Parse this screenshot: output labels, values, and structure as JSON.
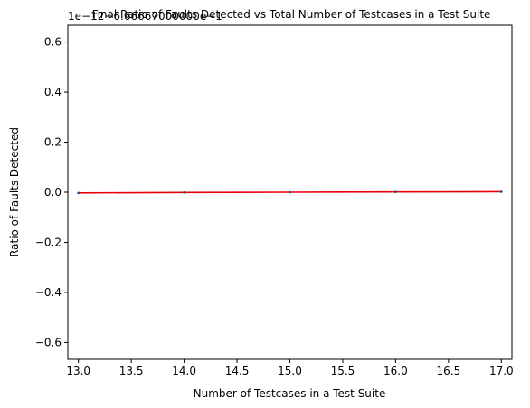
{
  "chart_data": {
    "type": "line",
    "title": "Final Ratio of Faults Detected vs Total Number of Testcases in a Test Suite",
    "xlabel": "Number of Testcases in a Test Suite",
    "ylabel": "Ratio of Faults Detected",
    "offset_label": "1e−12+6.66667000000e−1",
    "xlim": [
      12.9,
      17.1
    ],
    "ylim": [
      -0.667,
      0.667
    ],
    "x_ticks": [
      13.0,
      13.5,
      14.0,
      14.5,
      15.0,
      15.5,
      16.0,
      16.5,
      17.0
    ],
    "x_tick_labels": [
      "13.0",
      "13.5",
      "14.0",
      "14.5",
      "15.0",
      "15.5",
      "16.0",
      "16.5",
      "17.0"
    ],
    "y_ticks": [
      -0.6,
      -0.4,
      -0.2,
      0.0,
      0.2,
      0.4,
      0.6
    ],
    "y_tick_labels": [
      "−0.6",
      "−0.4",
      "−0.2",
      "0.0",
      "0.2",
      "0.4",
      "0.6"
    ],
    "grid": false,
    "series": [
      {
        "color": "#e8000b",
        "marker_color": "#1f4e79",
        "x": [
          13,
          14,
          15,
          16,
          17
        ],
        "y": [
          -0.003,
          -0.001,
          0.0,
          0.001,
          0.002
        ]
      }
    ]
  }
}
